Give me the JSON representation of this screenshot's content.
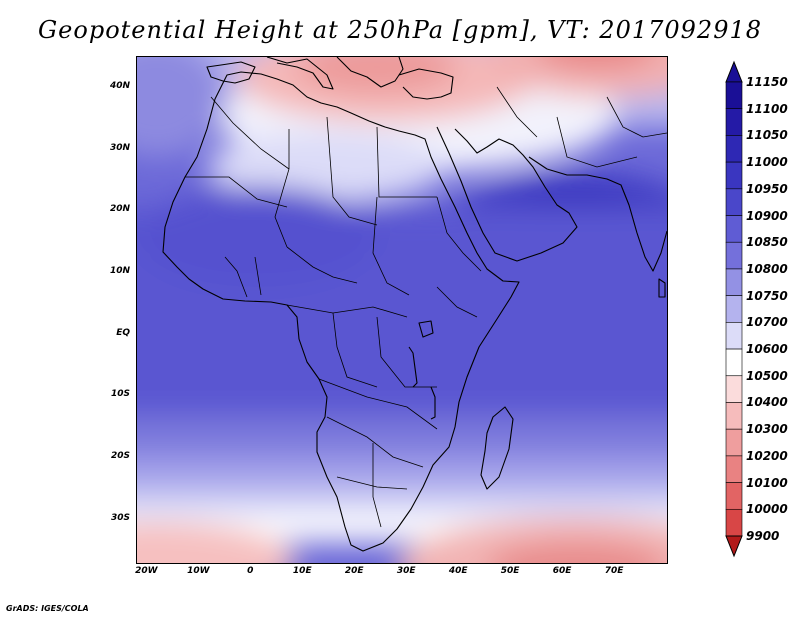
{
  "title": "Geopotential Height at 250hPa [gpm], VT: 2017092918",
  "footer": "GrADS: IGES/COLA",
  "map": {
    "lon_range": [
      -22,
      80
    ],
    "lat_range": [
      -37,
      45
    ],
    "lat_ticks": [
      {
        "value": 40,
        "label": "40N"
      },
      {
        "value": 30,
        "label": "30N"
      },
      {
        "value": 20,
        "label": "20N"
      },
      {
        "value": 10,
        "label": "10N"
      },
      {
        "value": 0,
        "label": "EQ"
      },
      {
        "value": -10,
        "label": "10S"
      },
      {
        "value": -20,
        "label": "20S"
      },
      {
        "value": -30,
        "label": "30S"
      }
    ],
    "lon_ticks": [
      {
        "value": -20,
        "label": "20W"
      },
      {
        "value": -10,
        "label": "10W"
      },
      {
        "value": 0,
        "label": "0"
      },
      {
        "value": 10,
        "label": "10E"
      },
      {
        "value": 20,
        "label": "20E"
      },
      {
        "value": 30,
        "label": "30E"
      },
      {
        "value": 40,
        "label": "40E"
      },
      {
        "value": 50,
        "label": "50E"
      },
      {
        "value": 60,
        "label": "60E"
      },
      {
        "value": 70,
        "label": "70E"
      }
    ]
  },
  "colorbar": {
    "levels": [
      {
        "label": "11150",
        "color": "#1a0f96"
      },
      {
        "label": "11100",
        "color": "#241aa6"
      },
      {
        "label": "11050",
        "color": "#2e28b4"
      },
      {
        "label": "11000",
        "color": "#3a36c0"
      },
      {
        "label": "10950",
        "color": "#4a47ca"
      },
      {
        "label": "10900",
        "color": "#5f5cd4"
      },
      {
        "label": "10850",
        "color": "#7470db"
      },
      {
        "label": "10800",
        "color": "#9391e4"
      },
      {
        "label": "10750",
        "color": "#b4b3ee"
      },
      {
        "label": "10700",
        "color": "#dcdcf8"
      },
      {
        "label": "10600",
        "color": "#ffffff"
      },
      {
        "label": "10500",
        "color": "#fbdcdc"
      },
      {
        "label": "10400",
        "color": "#f6bcbc"
      },
      {
        "label": "10300",
        "color": "#ef9e9e"
      },
      {
        "label": "10200",
        "color": "#e98282"
      },
      {
        "label": "10100",
        "color": "#e26464"
      },
      {
        "label": "10000",
        "color": "#d84646"
      },
      {
        "label": "9900",
        "color": "#c42c2c"
      }
    ],
    "top_arrow_color": "#1a0f96",
    "bottom_arrow_color": "#b21a1a"
  }
}
